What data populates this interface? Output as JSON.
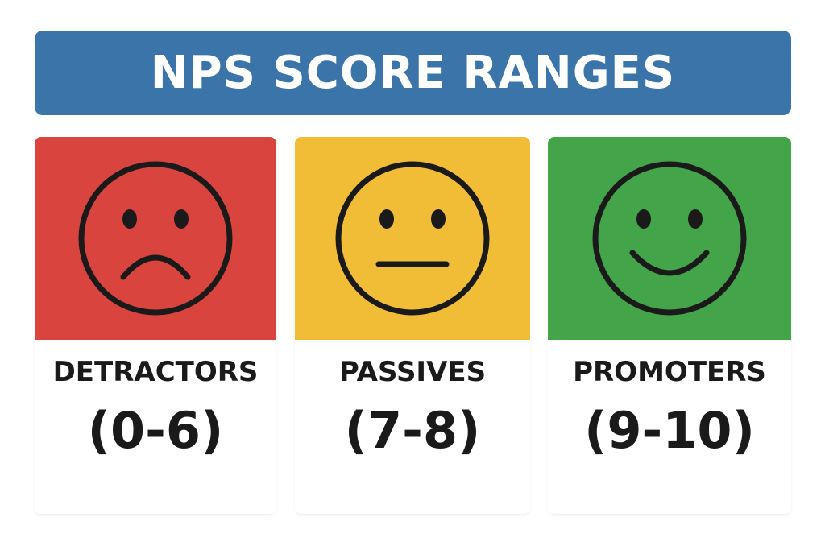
{
  "title": "NPS SCORE RANGES",
  "colors": {
    "banner": "#3b74a8",
    "detractors": "#d9443f",
    "passives": "#f1bd36",
    "promoters": "#44a44a",
    "ink": "#1a1a1a"
  },
  "categories": [
    {
      "label": "DETRACTORS",
      "range": "(0-6)",
      "icon": "sad-face-icon",
      "color": "#d9443f"
    },
    {
      "label": "PASSIVES",
      "range": "(7-8)",
      "icon": "neutral-face-icon",
      "color": "#f1bd36"
    },
    {
      "label": "PROMOTERS",
      "range": "(9-10)",
      "icon": "happy-face-icon",
      "color": "#44a44a"
    }
  ]
}
